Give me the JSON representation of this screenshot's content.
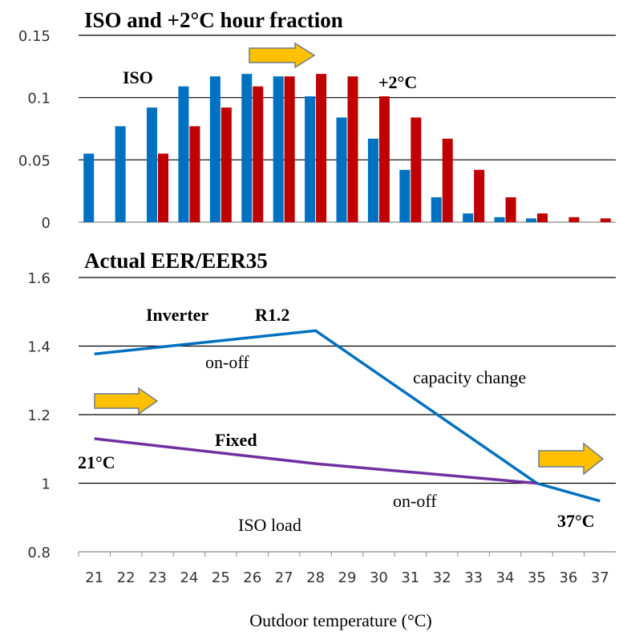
{
  "chart_data": [
    {
      "type": "bar",
      "title": "ISO and +2°C hour fraction",
      "x": [
        21,
        22,
        23,
        24,
        25,
        26,
        27,
        28,
        29,
        30,
        31,
        32,
        33,
        34,
        35,
        36,
        37
      ],
      "xlim": [
        20.5,
        37.5
      ],
      "series": [
        {
          "name": "ISO",
          "color": "#0070c0",
          "values": [
            0.055,
            0.077,
            0.092,
            0.109,
            0.117,
            0.119,
            0.117,
            0.101,
            0.084,
            0.067,
            0.042,
            0.02,
            0.007,
            0.004,
            0.003,
            0,
            0
          ]
        },
        {
          "name": "+2°C",
          "color": "#c00000",
          "values": [
            0,
            0,
            0.055,
            0.077,
            0.092,
            0.109,
            0.117,
            0.119,
            0.117,
            0.101,
            0.084,
            0.067,
            0.042,
            0.02,
            0.007,
            0.004,
            0.003
          ]
        }
      ],
      "ylim": [
        0,
        0.15
      ],
      "yticks": [
        0,
        0.05,
        0.1,
        0.15
      ],
      "grid": true
    },
    {
      "type": "line",
      "title": "Actual EER/EER35",
      "xlim": [
        20.5,
        37.5
      ],
      "xticks": [
        21,
        22,
        23,
        24,
        25,
        26,
        27,
        28,
        29,
        30,
        31,
        32,
        33,
        34,
        35,
        36,
        37
      ],
      "xlabel": "Outdoor temperature (°C)",
      "series": [
        {
          "name": "Inverter",
          "color": "#0070c0",
          "x": [
            21,
            28,
            35,
            37
          ],
          "values": [
            1.377,
            1.445,
            1.0,
            0.948
          ]
        },
        {
          "name": "Fixed",
          "color": "#7030a0",
          "x": [
            21,
            28,
            35
          ],
          "values": [
            1.13,
            1.057,
            1.0
          ]
        }
      ],
      "annotations": [
        "R1.2",
        "on-off",
        "capacity change",
        "21°C",
        "on-off",
        "ISO load",
        "37°C"
      ],
      "ylim": [
        0.8,
        1.6
      ],
      "yticks": [
        0.8,
        1,
        1.2,
        1.4,
        1.6
      ],
      "grid": true
    }
  ]
}
